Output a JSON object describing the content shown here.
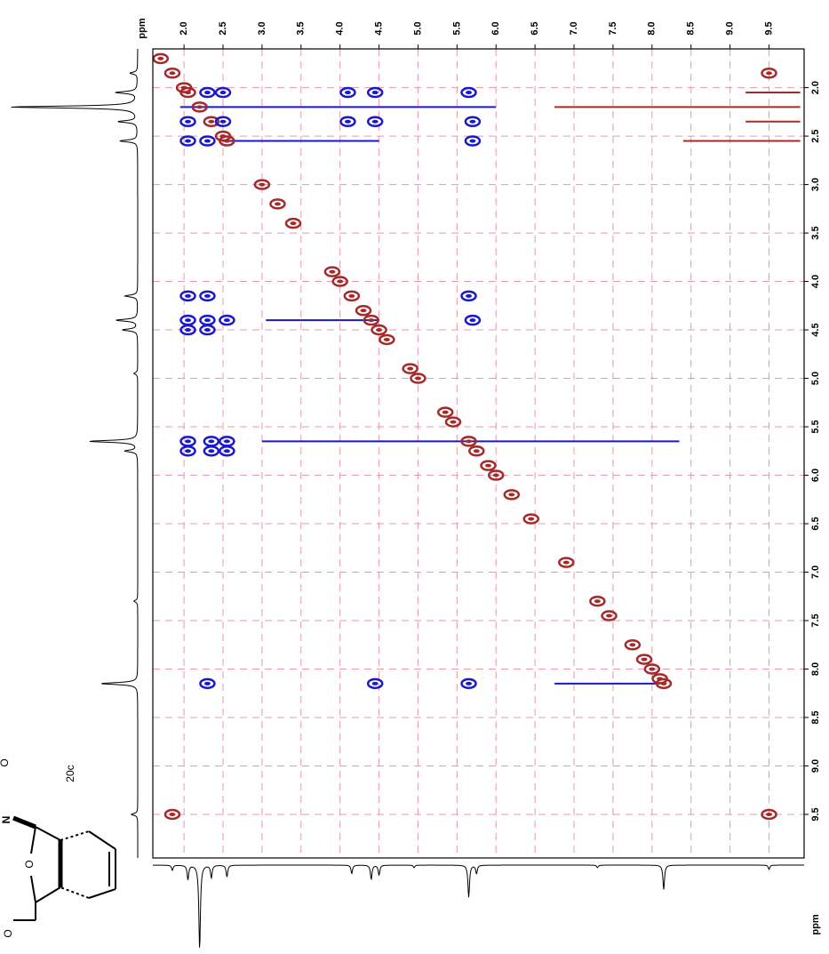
{
  "chart_data": {
    "type": "nmr2d",
    "xlabel": "ppm",
    "ylabel": "ppm",
    "xlim": [
      1.6,
      9.95
    ],
    "ylim": [
      1.6,
      9.95
    ],
    "xticks": [
      {
        "value": 2,
        "label": "2.0"
      },
      2.5,
      {
        "value": 3,
        "label": "3.0"
      },
      3.5,
      {
        "value": 4,
        "label": "4.0"
      },
      4.5,
      {
        "value": 5,
        "label": "5.0"
      },
      5.5,
      {
        "value": 6,
        "label": "6.0"
      },
      6.5,
      {
        "value": 7,
        "label": "7.0"
      },
      7.5,
      {
        "value": 8,
        "label": "8.0"
      },
      8.5,
      {
        "value": 9,
        "label": "9.0"
      },
      9.5
    ],
    "yticks": [
      {
        "value": 2,
        "label": "2.0"
      },
      2.5,
      {
        "value": 3,
        "label": "3.0"
      },
      3.5,
      {
        "value": 4,
        "label": "4.0"
      },
      4.5,
      {
        "value": 5,
        "label": "5.0"
      },
      5.5,
      {
        "value": 6,
        "label": "6.0"
      },
      6.5,
      {
        "value": 7,
        "label": "7.0"
      },
      7.5,
      {
        "value": 8,
        "label": "8.0"
      },
      8.5,
      {
        "value": 9,
        "label": "9.0"
      },
      9.5
    ],
    "grid": true,
    "grid_color": "#e89aa6",
    "series": [
      {
        "color": "#a52a2a",
        "x": [
          1.7,
          1.85,
          2.0,
          2.05,
          2.2,
          2.35,
          2.5,
          2.55,
          3.0,
          3.2,
          3.4,
          3.9,
          4.0,
          4.15,
          4.3,
          4.4,
          4.5,
          4.6,
          4.9,
          5.0,
          5.35,
          5.45,
          5.65,
          5.75,
          5.9,
          6.0,
          6.2,
          6.45,
          6.9,
          7.3,
          7.45,
          7.75,
          7.9,
          8.0,
          8.1,
          8.15,
          9.5,
          1.85,
          9.5
        ],
        "y": [
          1.7,
          1.85,
          2.0,
          2.05,
          2.2,
          2.35,
          2.5,
          2.55,
          3.0,
          3.2,
          3.4,
          3.9,
          4.0,
          4.15,
          4.3,
          4.4,
          4.5,
          4.6,
          4.9,
          5.0,
          5.35,
          5.45,
          5.65,
          5.75,
          5.9,
          6.0,
          6.2,
          6.45,
          6.9,
          7.3,
          7.45,
          7.75,
          7.9,
          8.0,
          8.1,
          8.15,
          1.85,
          9.5,
          9.5
        ]
      },
      {
        "color": "#1a1acc",
        "x": [
          2.3,
          2.5,
          4.1,
          4.45,
          5.65,
          2.05,
          2.5,
          4.1,
          4.45,
          5.7,
          2.05,
          2.3,
          5.7,
          2.05,
          2.3,
          5.65,
          2.05,
          2.3,
          2.55,
          5.7,
          2.05,
          2.3,
          2.05,
          2.35,
          2.55,
          2.05,
          2.35,
          2.55,
          2.3,
          4.45,
          5.65
        ],
        "y": [
          2.05,
          2.05,
          2.05,
          2.05,
          2.05,
          2.35,
          2.35,
          2.35,
          2.35,
          2.35,
          2.55,
          2.55,
          2.55,
          4.15,
          4.15,
          4.15,
          4.4,
          4.4,
          4.4,
          4.4,
          4.5,
          4.5,
          5.65,
          5.65,
          5.65,
          5.75,
          5.75,
          5.75,
          8.15,
          8.15,
          8.15
        ]
      }
    ],
    "ridges": [
      {
        "y": 2.2,
        "x_start": 1.95,
        "x_end": 6.0,
        "color": "#1a1acc"
      },
      {
        "y": 2.2,
        "x_start": 6.75,
        "x_end": 9.9,
        "color": "#a52a2a"
      },
      {
        "y": 2.55,
        "x_start": 2.5,
        "x_end": 4.5,
        "color": "#1a1acc"
      },
      {
        "y": 4.4,
        "x_start": 3.05,
        "x_end": 4.5,
        "color": "#1a1acc"
      },
      {
        "y": 5.65,
        "x_start": 3.0,
        "x_end": 8.35,
        "color": "#1a1acc"
      },
      {
        "y": 8.15,
        "x_start": 6.75,
        "x_end": 8.1,
        "color": "#1a1acc"
      },
      {
        "y": 2.05,
        "x_start": 9.2,
        "x_end": 9.9,
        "color": "#a52a2a"
      },
      {
        "y": 2.35,
        "x_start": 9.2,
        "x_end": 9.9,
        "color": "#a52a2a"
      },
      {
        "y": 2.55,
        "x_start": 8.4,
        "x_end": 9.9,
        "color": "#a52a2a"
      }
    ],
    "trace": {
      "x": [
        1.85,
        2.05,
        2.2,
        2.35,
        2.55,
        4.15,
        4.4,
        4.5,
        4.95,
        5.65,
        5.75,
        7.3,
        8.15,
        9.5
      ],
      "heights": [
        6,
        17,
        100,
        15,
        14,
        10,
        17,
        12,
        3,
        38,
        10,
        3,
        29,
        5
      ]
    },
    "structure": {
      "label": "20c",
      "atoms": [
        "O",
        "O",
        "N",
        "O"
      ]
    }
  }
}
